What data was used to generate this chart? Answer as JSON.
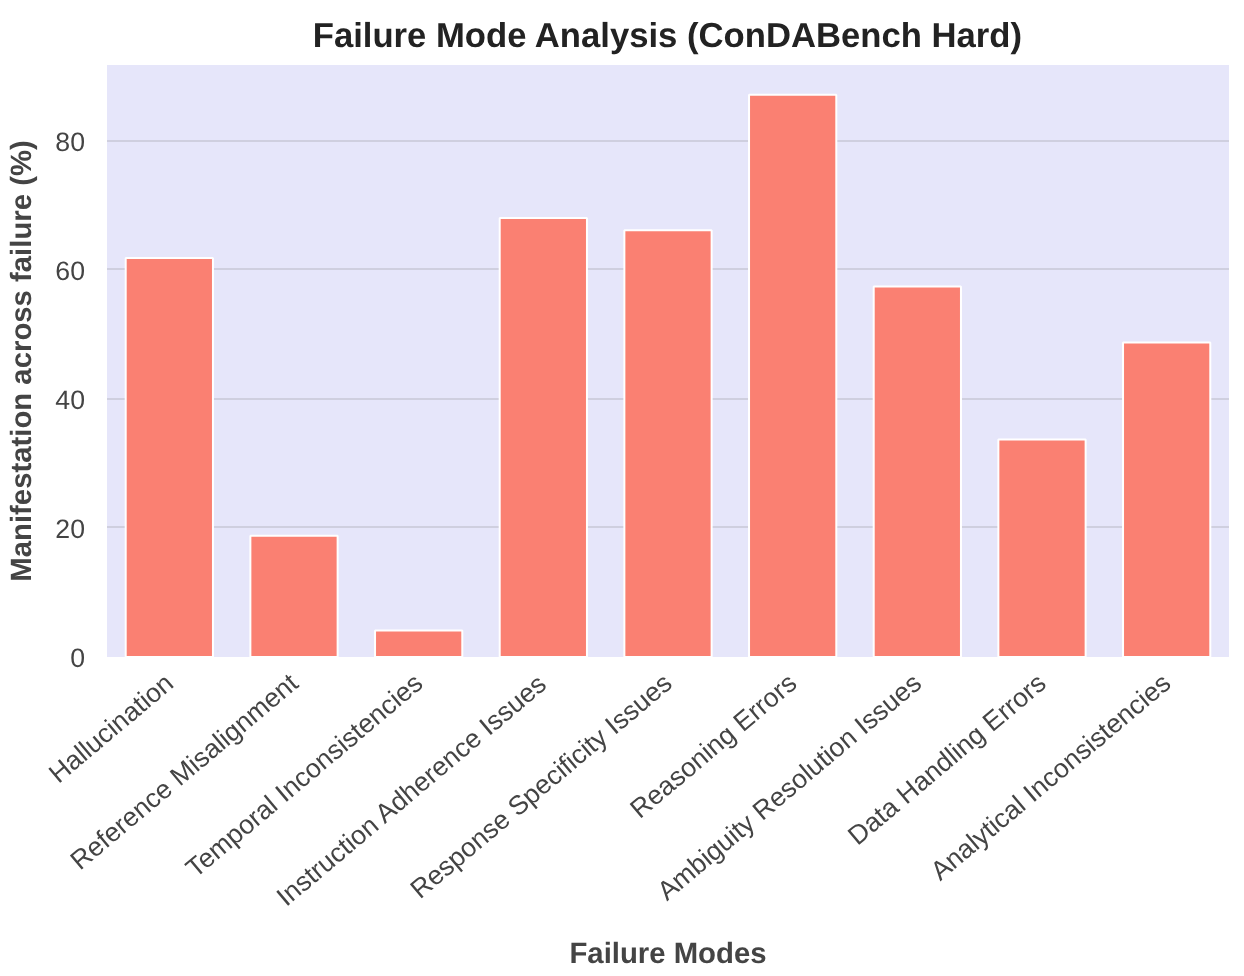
{
  "chart_data": {
    "type": "bar",
    "title": "Failure Mode Analysis (ConDABench Hard)",
    "xlabel": "Failure Modes",
    "ylabel": "Manifestation across failure (%)",
    "categories": [
      "Hallucination",
      "Reference Misalignment",
      "Temporal Inconsistencies",
      "Instruction Adherence Issues",
      "Response Specificity Issues",
      "Reasoning Errors",
      "Ambiguity Resolution Issues",
      "Data Handling Errors",
      "Analytical Inconsistencies"
    ],
    "values": [
      61.8,
      18.8,
      4.1,
      68.0,
      66.1,
      87.1,
      57.4,
      33.7,
      48.7
    ],
    "color": "#fa8072",
    "ylim": [
      0,
      91.7
    ],
    "yticks": [
      0,
      20,
      40,
      60,
      80
    ],
    "grid": "y"
  }
}
